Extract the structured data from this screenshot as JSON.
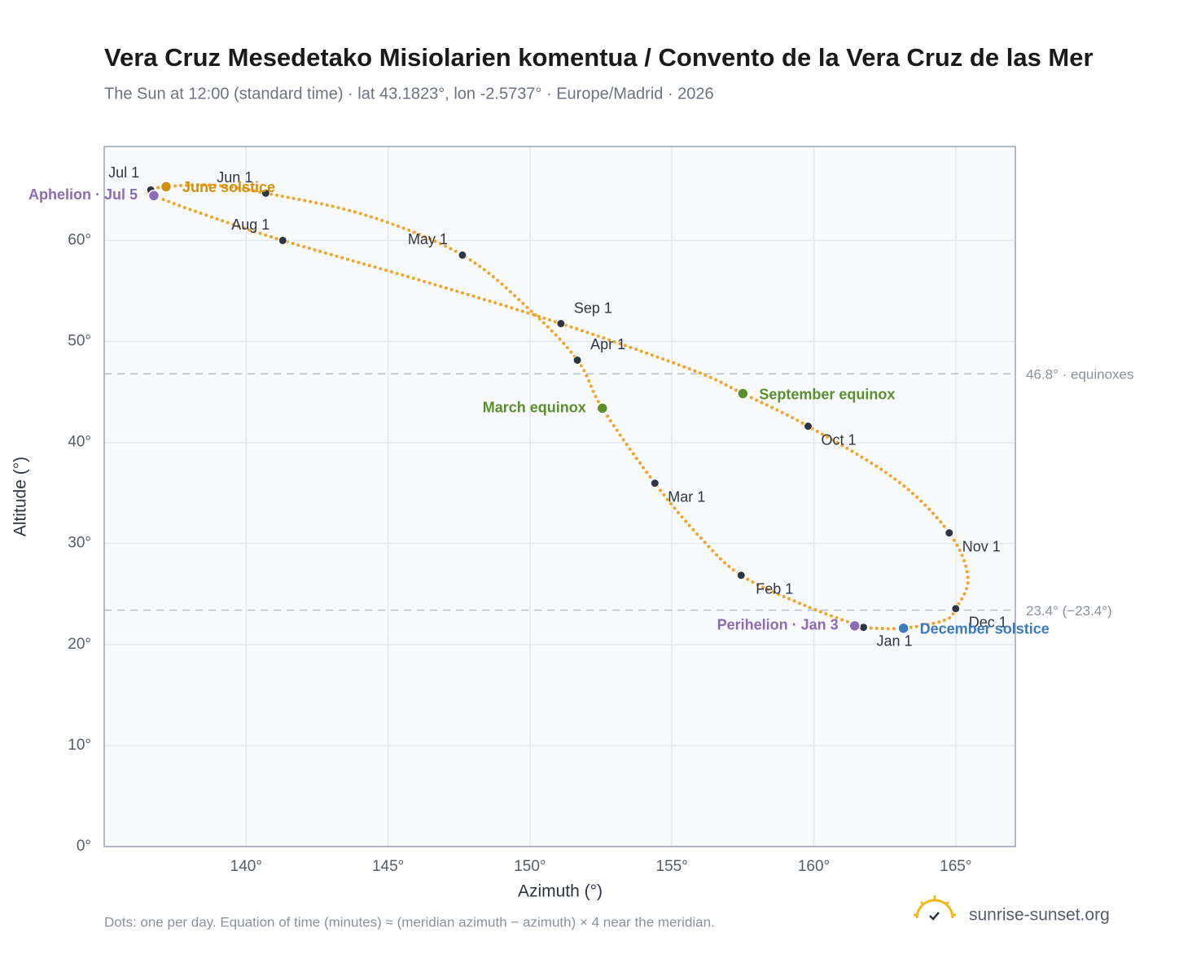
{
  "chart_data": {
    "type": "analemma",
    "title": "Vera Cruz Mesedetako Misiolarien komentua / Convento de la Vera Cruz de las Mer",
    "subtitle": "The Sun at 12:00 (standard time) · lat 43.1823°, lon -2.5737° · Europe/Madrid · 2026",
    "x_label": "Azimuth (°)",
    "y_label": "Altitude (°)",
    "footnote": "Dots: one per day. Equation of time (minutes) ≈ (meridian azimuth − azimuth) × 4 near the meridian.",
    "brand": "sunrise-sunset.org",
    "xlim": [
      135,
      167.1
    ],
    "ylim": [
      0,
      69.3
    ],
    "xticks": [
      {
        "value": 140,
        "label": "140°"
      },
      {
        "value": 145,
        "label": "145°"
      },
      {
        "value": 150,
        "label": "150°"
      },
      {
        "value": 155,
        "label": "155°"
      },
      {
        "value": 160,
        "label": "160°"
      },
      {
        "value": 165,
        "label": "165°"
      }
    ],
    "yticks": [
      {
        "value": 0,
        "label": "0°"
      },
      {
        "value": 10,
        "label": "10°"
      },
      {
        "value": 20,
        "label": "20°"
      },
      {
        "value": 30,
        "label": "30°"
      },
      {
        "value": 40,
        "label": "40°"
      },
      {
        "value": 50,
        "label": "50°"
      },
      {
        "value": 60,
        "label": "60°"
      }
    ],
    "grid": true,
    "daily_path": {
      "color": "#f2a429",
      "x": [
        161.75,
        159.74,
        157.44,
        156.0,
        154.4,
        152.55,
        151.67,
        149.97,
        147.62,
        144.22,
        140.69,
        138.76,
        137.18,
        136.64,
        136.75,
        138.6,
        141.29,
        146.2,
        151.09,
        155.7,
        157.5,
        159.8,
        162.9,
        164.77,
        165.43,
        165.0,
        164.6,
        163.16,
        161.9
      ],
      "y": [
        21.7,
        23.8,
        26.85,
        30.6,
        35.97,
        43.39,
        48.15,
        53.2,
        58.55,
        62.5,
        64.68,
        65.48,
        65.32,
        65.0,
        64.44,
        62.5,
        60.0,
        56.0,
        51.77,
        47.2,
        44.84,
        41.61,
        36.3,
        31.05,
        26.6,
        23.55,
        22.4,
        21.61,
        21.65
      ]
    },
    "month_markers": {
      "color": "#2f3542",
      "labels": [
        "Jan 1",
        "Feb 1",
        "Mar 1",
        "Apr 1",
        "May 1",
        "Jun 1",
        "Jul 1",
        "Aug 1",
        "Sep 1",
        "Oct 1",
        "Nov 1",
        "Dec 1"
      ],
      "x": [
        161.75,
        157.44,
        154.4,
        151.67,
        147.62,
        140.69,
        136.64,
        141.29,
        151.09,
        159.8,
        164.77,
        165.0
      ],
      "y": [
        21.7,
        26.85,
        35.97,
        48.15,
        58.55,
        64.68,
        65.0,
        60.0,
        51.77,
        41.61,
        31.05,
        23.55
      ]
    },
    "events": [
      {
        "label": "June solstice",
        "x": 137.18,
        "y": 65.32,
        "color": "#d4900a"
      },
      {
        "label": "Aphelion · Jul 5",
        "x": 136.75,
        "y": 64.44,
        "color": "#8e6bb5"
      },
      {
        "label": "March equinox",
        "x": 152.55,
        "y": 43.39,
        "color": "#5a8f2e"
      },
      {
        "label": "September equinox",
        "x": 157.5,
        "y": 44.84,
        "color": "#5a8f2e"
      },
      {
        "label": "Perihelion · Jan 3",
        "x": 161.44,
        "y": 21.85,
        "color": "#8e6bb5"
      },
      {
        "label": "December solstice",
        "x": 163.16,
        "y": 21.61,
        "color": "#3a7bbf"
      }
    ],
    "reference_lines": [
      {
        "value": 46.8,
        "label": "46.8° · equinoxes"
      },
      {
        "value": 23.4,
        "label": "23.4° (−23.4°)"
      }
    ]
  }
}
